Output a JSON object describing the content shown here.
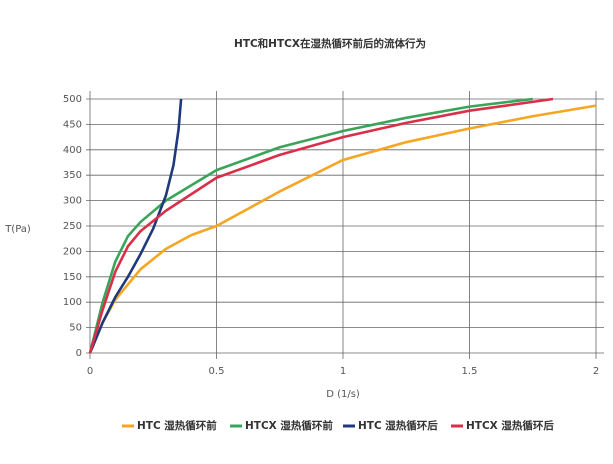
{
  "chart_data": {
    "type": "line",
    "title": "HTC和HTCX在湿热循环前后的流体行为",
    "x_label": "D (1/s)",
    "y_label": "T(Pa)",
    "xlim": [
      0,
      2
    ],
    "xticks": [
      0,
      0.5,
      1,
      1.5,
      2
    ],
    "ylim": [
      0,
      500
    ],
    "yticks": [
      0,
      50,
      100,
      150,
      200,
      250,
      300,
      350,
      400,
      450,
      500
    ],
    "grid": true,
    "legend": "bottom",
    "series": [
      {
        "name": "HTC 湿热循环前",
        "color": "#f5a623",
        "x": [
          0,
          0.05,
          0.1,
          0.2,
          0.3,
          0.4,
          0.5,
          0.75,
          1,
          1.25,
          1.5,
          1.75,
          2
        ],
        "values": [
          0,
          60,
          105,
          165,
          205,
          232,
          250,
          318,
          380,
          415,
          442,
          466,
          487
        ]
      },
      {
        "name": "HTCX 湿热循环前",
        "color": "#3aa55a",
        "x": [
          0,
          0.05,
          0.1,
          0.15,
          0.2,
          0.3,
          0.5,
          0.75,
          1,
          1.25,
          1.5,
          1.75
        ],
        "values": [
          0,
          100,
          180,
          230,
          258,
          300,
          360,
          405,
          437,
          463,
          485,
          500
        ]
      },
      {
        "name": "HTC 湿热循环后",
        "color": "#1f3a7a",
        "x": [
          0,
          0.05,
          0.1,
          0.15,
          0.2,
          0.25,
          0.3,
          0.33,
          0.35,
          0.36
        ],
        "values": [
          0,
          60,
          110,
          150,
          195,
          245,
          310,
          370,
          440,
          500
        ]
      },
      {
        "name": "HTCX 湿热循环后",
        "color": "#d9304a",
        "x": [
          0,
          0.05,
          0.1,
          0.15,
          0.2,
          0.3,
          0.5,
          0.75,
          1,
          1.25,
          1.5,
          1.83
        ],
        "values": [
          0,
          85,
          160,
          210,
          240,
          280,
          345,
          390,
          425,
          453,
          477,
          500
        ]
      }
    ]
  }
}
